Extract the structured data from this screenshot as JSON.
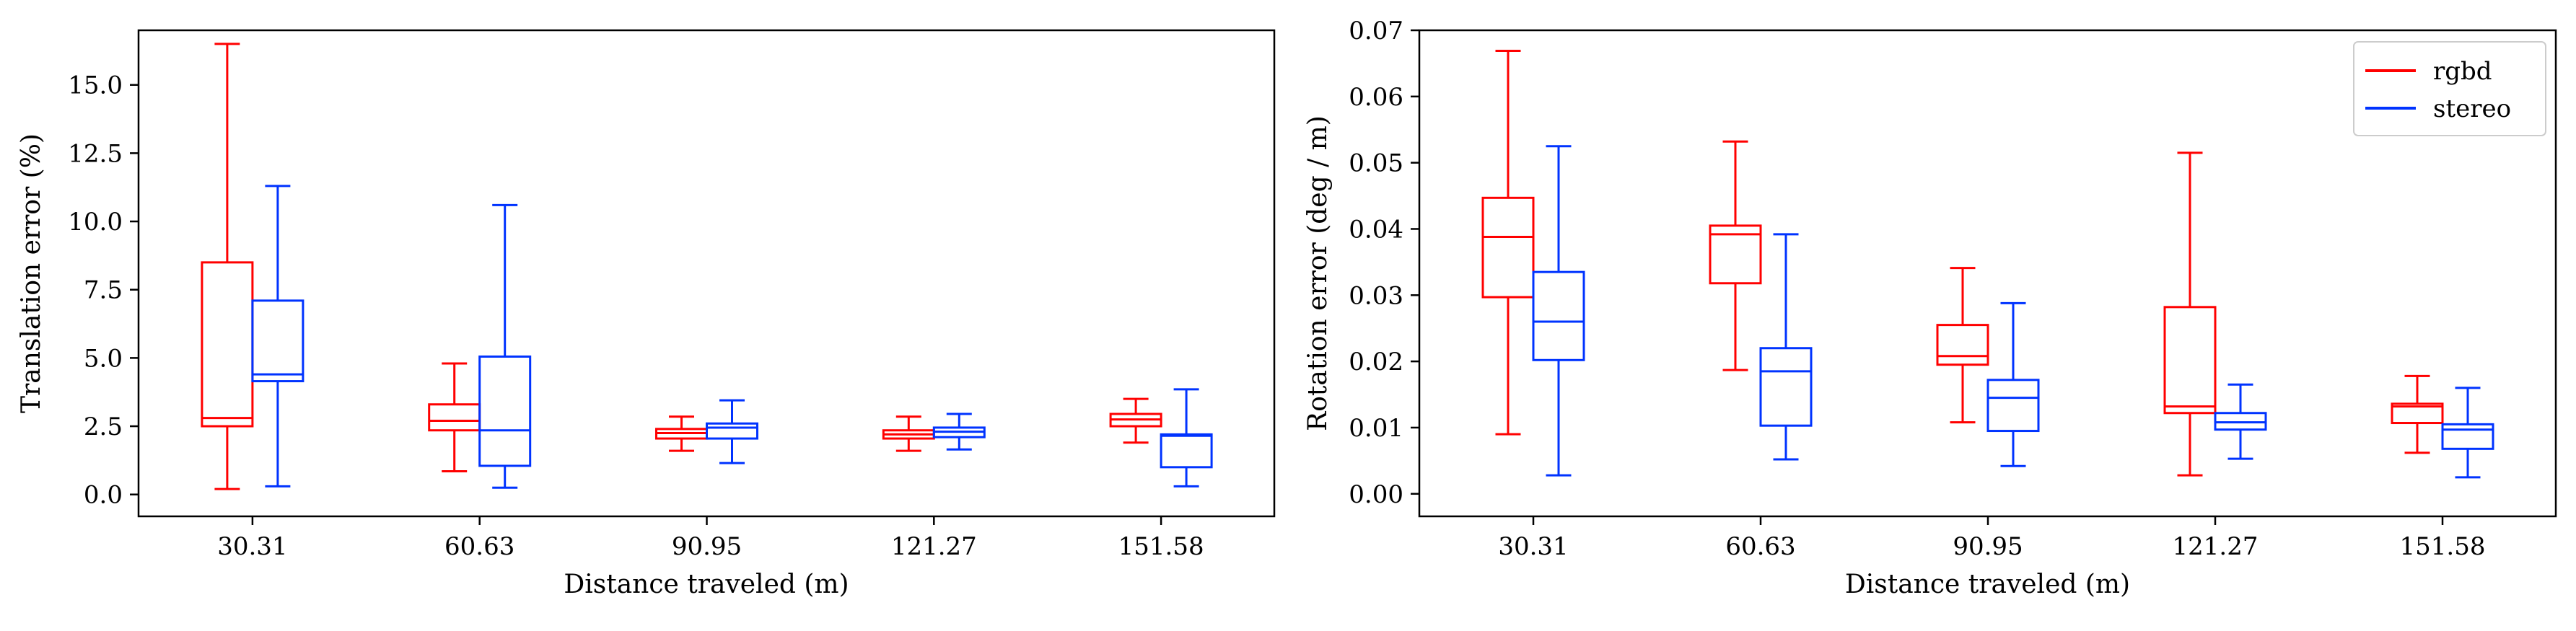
{
  "colors": {
    "rgbd": "#ff0000",
    "stereo": "#0033ff",
    "axis": "#000000"
  },
  "chart_data": [
    {
      "type": "box",
      "xlabel": "Distance traveled (m)",
      "ylabel": "Translation error (%)",
      "ylim": [
        -0.8,
        17.0
      ],
      "yticks": [
        "0.0",
        "2.5",
        "5.0",
        "7.5",
        "10.0",
        "12.5",
        "15.0"
      ],
      "categories": [
        "30.31",
        "60.63",
        "90.95",
        "121.27",
        "151.58"
      ],
      "grid": false,
      "legend": null,
      "series": [
        {
          "name": "rgbd",
          "boxes": [
            {
              "whislo": 0.2,
              "q1": 2.5,
              "med": 2.8,
              "q3": 8.5,
              "whishi": 16.5
            },
            {
              "whislo": 0.85,
              "q1": 2.35,
              "med": 2.7,
              "q3": 3.3,
              "whishi": 4.8
            },
            {
              "whislo": 1.6,
              "q1": 2.05,
              "med": 2.25,
              "q3": 2.4,
              "whishi": 2.85
            },
            {
              "whislo": 1.6,
              "q1": 2.05,
              "med": 2.2,
              "q3": 2.35,
              "whishi": 2.85
            },
            {
              "whislo": 1.9,
              "q1": 2.5,
              "med": 2.75,
              "q3": 2.95,
              "whishi": 3.5
            }
          ]
        },
        {
          "name": "stereo",
          "boxes": [
            {
              "whislo": 0.3,
              "q1": 4.15,
              "med": 4.4,
              "q3": 7.1,
              "whishi": 11.3
            },
            {
              "whislo": 0.25,
              "q1": 1.05,
              "med": 2.35,
              "q3": 5.05,
              "whishi": 10.6
            },
            {
              "whislo": 1.15,
              "q1": 2.05,
              "med": 2.45,
              "q3": 2.6,
              "whishi": 3.45
            },
            {
              "whislo": 1.65,
              "q1": 2.1,
              "med": 2.3,
              "q3": 2.45,
              "whishi": 2.95
            },
            {
              "whislo": 0.3,
              "q1": 1.0,
              "med": 2.15,
              "q3": 2.2,
              "whishi": 3.85
            }
          ]
        }
      ]
    },
    {
      "type": "box",
      "xlabel": "Distance traveled (m)",
      "ylabel": "Rotation error (deg / m)",
      "ylim": [
        -0.0034,
        0.07
      ],
      "yticks": [
        "0.00",
        "0.01",
        "0.02",
        "0.03",
        "0.04",
        "0.05",
        "0.06",
        "0.07"
      ],
      "categories": [
        "30.31",
        "60.63",
        "90.95",
        "121.27",
        "151.58"
      ],
      "grid": false,
      "legend": "top-right",
      "series": [
        {
          "name": "rgbd",
          "boxes": [
            {
              "whislo": 0.009,
              "q1": 0.0297,
              "med": 0.0388,
              "q3": 0.0447,
              "whishi": 0.0669
            },
            {
              "whislo": 0.0187,
              "q1": 0.0318,
              "med": 0.0392,
              "q3": 0.0405,
              "whishi": 0.0532
            },
            {
              "whislo": 0.0108,
              "q1": 0.0195,
              "med": 0.0208,
              "q3": 0.0255,
              "whishi": 0.0341
            },
            {
              "whislo": 0.0028,
              "q1": 0.0122,
              "med": 0.0132,
              "q3": 0.0282,
              "whishi": 0.0515
            },
            {
              "whislo": 0.0062,
              "q1": 0.0107,
              "med": 0.0132,
              "q3": 0.0136,
              "whishi": 0.0178
            }
          ]
        },
        {
          "name": "stereo",
          "boxes": [
            {
              "whislo": 0.0028,
              "q1": 0.0202,
              "med": 0.026,
              "q3": 0.0335,
              "whishi": 0.0525
            },
            {
              "whislo": 0.0052,
              "q1": 0.0103,
              "med": 0.0185,
              "q3": 0.022,
              "whishi": 0.0392
            },
            {
              "whislo": 0.0042,
              "q1": 0.0095,
              "med": 0.0145,
              "q3": 0.0172,
              "whishi": 0.0288
            },
            {
              "whislo": 0.0053,
              "q1": 0.0097,
              "med": 0.0108,
              "q3": 0.0122,
              "whishi": 0.0165
            },
            {
              "whislo": 0.0025,
              "q1": 0.0068,
              "med": 0.0097,
              "q3": 0.0105,
              "whishi": 0.016
            }
          ]
        }
      ]
    }
  ]
}
